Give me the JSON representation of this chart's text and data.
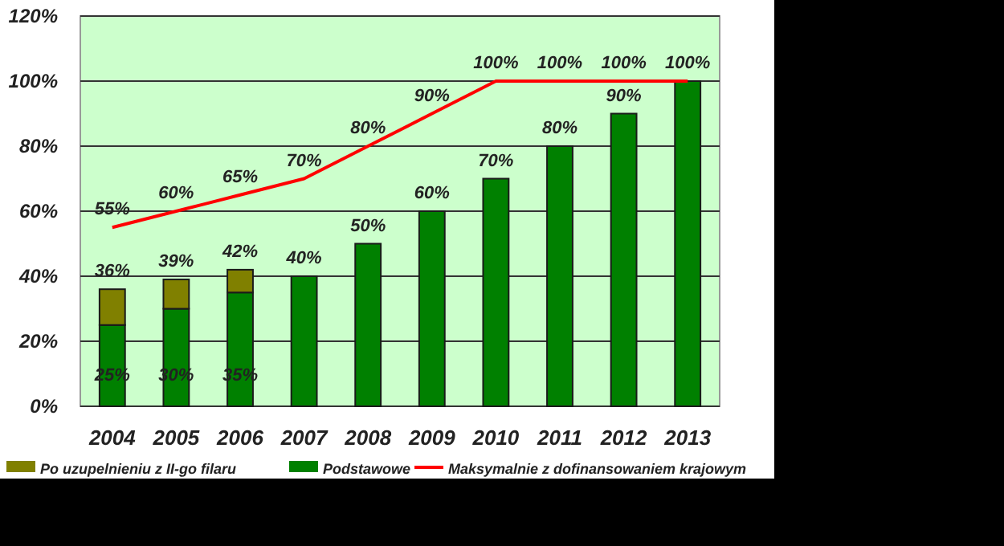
{
  "chart_data": {
    "type": "bar",
    "stacked": true,
    "categories": [
      "2004",
      "2005",
      "2006",
      "2007",
      "2008",
      "2009",
      "2010",
      "2011",
      "2012",
      "2013"
    ],
    "series": [
      {
        "name": "Podstawowe",
        "color": "#008000",
        "values": [
          25,
          30,
          35,
          40,
          50,
          60,
          70,
          80,
          90,
          100
        ],
        "value_labels": [
          "25%",
          "30%",
          "35%",
          null,
          null,
          null,
          null,
          null,
          null,
          null
        ]
      },
      {
        "name": "Po uzupelnieniu z II-go filaru",
        "color": "#808000",
        "values": [
          11,
          9,
          7,
          null,
          null,
          null,
          null,
          null,
          null,
          null
        ]
      },
      {
        "name": "Maksymalnie z dofinansowaniem krajowym",
        "type": "line",
        "color": "#ff0000",
        "values": [
          55,
          60,
          65,
          70,
          80,
          90,
          100,
          100,
          100,
          100
        ],
        "value_labels": [
          "55%",
          "60%",
          "65%",
          "70%",
          "80%",
          "90%",
          "100%",
          "100%",
          "100%",
          "100%"
        ]
      }
    ],
    "totals": [
      "36%",
      "39%",
      "42%",
      "40%",
      "50%",
      "60%",
      "70%",
      "80%",
      "90%",
      null
    ],
    "ylim": [
      0,
      120
    ],
    "yticks": [
      {
        "value": 0,
        "label": "0%"
      },
      {
        "value": 20,
        "label": "20%"
      },
      {
        "value": 40,
        "label": "40%"
      },
      {
        "value": 60,
        "label": "60%"
      },
      {
        "value": 80,
        "label": "80%"
      },
      {
        "value": 100,
        "label": "100%"
      },
      {
        "value": 120,
        "label": "120%"
      }
    ],
    "grid": "y",
    "legend": "bottom",
    "marker": "none",
    "line_style": "solid"
  }
}
